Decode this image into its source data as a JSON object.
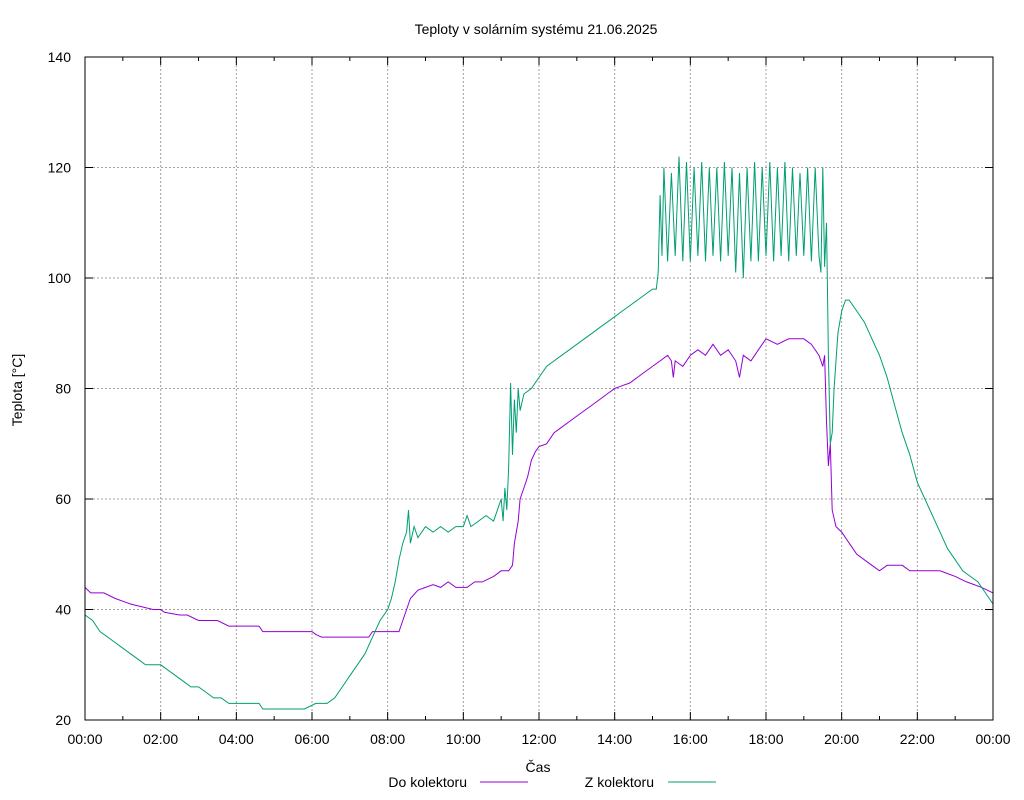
{
  "chart_data": {
    "type": "line",
    "title": "Teploty v solárním systému 21.06.2025",
    "xlabel": "Čas",
    "ylabel": "Teplota [°C]",
    "xlim": [
      0,
      24
    ],
    "ylim": [
      20,
      140
    ],
    "grid": true,
    "legend_position": "bottom",
    "x_ticks": [
      "00:00",
      "02:00",
      "04:00",
      "06:00",
      "08:00",
      "10:00",
      "12:00",
      "14:00",
      "16:00",
      "18:00",
      "20:00",
      "22:00",
      "00:00"
    ],
    "y_ticks": [
      "20",
      "40",
      "60",
      "80",
      "100",
      "120",
      "140"
    ],
    "series": [
      {
        "name": "Do kolektoru",
        "color": "#9400d3",
        "points": [
          [
            0.0,
            44
          ],
          [
            0.15,
            43
          ],
          [
            0.5,
            43
          ],
          [
            0.8,
            42
          ],
          [
            1.2,
            41
          ],
          [
            1.8,
            40
          ],
          [
            2.0,
            40
          ],
          [
            2.1,
            39.5
          ],
          [
            2.5,
            39
          ],
          [
            2.7,
            39
          ],
          [
            3.0,
            38
          ],
          [
            3.5,
            38
          ],
          [
            3.8,
            37
          ],
          [
            4.5,
            37
          ],
          [
            4.6,
            37
          ],
          [
            4.7,
            36
          ],
          [
            5.5,
            36
          ],
          [
            6.0,
            36
          ],
          [
            6.1,
            35.5
          ],
          [
            6.25,
            35
          ],
          [
            7.0,
            35
          ],
          [
            7.5,
            35
          ],
          [
            7.6,
            36
          ],
          [
            8.1,
            36
          ],
          [
            8.3,
            36
          ],
          [
            8.4,
            38
          ],
          [
            8.5,
            40
          ],
          [
            8.6,
            42
          ],
          [
            8.8,
            43.5
          ],
          [
            9.0,
            44
          ],
          [
            9.2,
            44.5
          ],
          [
            9.4,
            44
          ],
          [
            9.6,
            45
          ],
          [
            9.8,
            44
          ],
          [
            10.1,
            44
          ],
          [
            10.3,
            45
          ],
          [
            10.5,
            45
          ],
          [
            10.8,
            46
          ],
          [
            11.0,
            47
          ],
          [
            11.2,
            47
          ],
          [
            11.3,
            48
          ],
          [
            11.35,
            52
          ],
          [
            11.45,
            56
          ],
          [
            11.5,
            60
          ],
          [
            11.6,
            62
          ],
          [
            11.7,
            64
          ],
          [
            11.8,
            67
          ],
          [
            11.9,
            68.5
          ],
          [
            12.0,
            69.5
          ],
          [
            12.2,
            70
          ],
          [
            12.4,
            72
          ],
          [
            12.6,
            73
          ],
          [
            12.8,
            74
          ],
          [
            13.0,
            75
          ],
          [
            13.2,
            76
          ],
          [
            13.4,
            77
          ],
          [
            13.6,
            78
          ],
          [
            13.8,
            79
          ],
          [
            14.0,
            80
          ],
          [
            14.2,
            80.5
          ],
          [
            14.4,
            81
          ],
          [
            14.6,
            82
          ],
          [
            14.8,
            83
          ],
          [
            15.0,
            84
          ],
          [
            15.2,
            85
          ],
          [
            15.4,
            86
          ],
          [
            15.5,
            85
          ],
          [
            15.55,
            82
          ],
          [
            15.6,
            85
          ],
          [
            15.8,
            84
          ],
          [
            16.0,
            86
          ],
          [
            16.2,
            87
          ],
          [
            16.4,
            86
          ],
          [
            16.6,
            88
          ],
          [
            16.8,
            86
          ],
          [
            17.0,
            87
          ],
          [
            17.2,
            85
          ],
          [
            17.3,
            82
          ],
          [
            17.4,
            86
          ],
          [
            17.6,
            85
          ],
          [
            17.8,
            87
          ],
          [
            18.0,
            89
          ],
          [
            18.3,
            88
          ],
          [
            18.6,
            89
          ],
          [
            19.0,
            89
          ],
          [
            19.2,
            88
          ],
          [
            19.4,
            86
          ],
          [
            19.5,
            84
          ],
          [
            19.55,
            86
          ],
          [
            19.6,
            74
          ],
          [
            19.65,
            66
          ],
          [
            19.7,
            70
          ],
          [
            19.75,
            58
          ],
          [
            19.85,
            55
          ],
          [
            20.0,
            54
          ],
          [
            20.2,
            52
          ],
          [
            20.4,
            50
          ],
          [
            20.6,
            49
          ],
          [
            20.8,
            48
          ],
          [
            21.0,
            47
          ],
          [
            21.2,
            48
          ],
          [
            21.6,
            48
          ],
          [
            21.8,
            47
          ],
          [
            22.2,
            47
          ],
          [
            22.6,
            47
          ],
          [
            22.8,
            46.5
          ],
          [
            23.0,
            46
          ],
          [
            23.3,
            45
          ],
          [
            23.5,
            44.5
          ],
          [
            23.7,
            44
          ],
          [
            23.85,
            43.5
          ],
          [
            24.0,
            43
          ]
        ]
      },
      {
        "name": "Z kolektoru",
        "color": "#009e73",
        "points": [
          [
            0.0,
            39
          ],
          [
            0.2,
            38
          ],
          [
            0.4,
            36
          ],
          [
            0.6,
            35
          ],
          [
            0.8,
            34
          ],
          [
            1.0,
            33
          ],
          [
            1.2,
            32
          ],
          [
            1.4,
            31
          ],
          [
            1.6,
            30
          ],
          [
            2.0,
            30
          ],
          [
            2.2,
            29
          ],
          [
            2.4,
            28
          ],
          [
            2.6,
            27
          ],
          [
            2.8,
            26
          ],
          [
            3.0,
            26
          ],
          [
            3.2,
            25
          ],
          [
            3.4,
            24
          ],
          [
            3.6,
            24
          ],
          [
            3.8,
            23
          ],
          [
            4.0,
            23
          ],
          [
            4.6,
            23
          ],
          [
            4.7,
            22
          ],
          [
            5.5,
            22
          ],
          [
            5.8,
            22
          ],
          [
            6.1,
            23
          ],
          [
            6.4,
            23
          ],
          [
            6.6,
            24
          ],
          [
            6.8,
            26
          ],
          [
            7.0,
            28
          ],
          [
            7.2,
            30
          ],
          [
            7.4,
            32
          ],
          [
            7.6,
            35
          ],
          [
            7.8,
            38
          ],
          [
            8.0,
            40
          ],
          [
            8.1,
            42
          ],
          [
            8.2,
            45
          ],
          [
            8.3,
            49
          ],
          [
            8.4,
            52
          ],
          [
            8.5,
            54
          ],
          [
            8.55,
            58
          ],
          [
            8.6,
            52
          ],
          [
            8.7,
            55
          ],
          [
            8.8,
            53
          ],
          [
            9.0,
            55
          ],
          [
            9.2,
            54
          ],
          [
            9.4,
            55
          ],
          [
            9.6,
            54
          ],
          [
            9.8,
            55
          ],
          [
            10.0,
            55
          ],
          [
            10.1,
            57
          ],
          [
            10.2,
            55
          ],
          [
            10.4,
            56
          ],
          [
            10.6,
            57
          ],
          [
            10.8,
            56
          ],
          [
            11.0,
            60
          ],
          [
            11.05,
            56
          ],
          [
            11.1,
            62
          ],
          [
            11.15,
            58
          ],
          [
            11.2,
            66
          ],
          [
            11.25,
            81
          ],
          [
            11.3,
            68
          ],
          [
            11.35,
            78
          ],
          [
            11.4,
            72
          ],
          [
            11.45,
            80
          ],
          [
            11.5,
            76
          ],
          [
            11.6,
            79
          ],
          [
            11.8,
            80
          ],
          [
            12.0,
            82
          ],
          [
            12.2,
            84
          ],
          [
            12.4,
            85
          ],
          [
            12.6,
            86
          ],
          [
            12.8,
            87
          ],
          [
            13.0,
            88
          ],
          [
            13.2,
            89
          ],
          [
            13.4,
            90
          ],
          [
            13.6,
            91
          ],
          [
            13.8,
            92
          ],
          [
            14.0,
            93
          ],
          [
            14.2,
            94
          ],
          [
            14.4,
            95
          ],
          [
            14.6,
            96
          ],
          [
            14.8,
            97
          ],
          [
            15.0,
            98
          ],
          [
            15.1,
            98
          ],
          [
            15.15,
            101
          ],
          [
            15.2,
            115
          ],
          [
            15.25,
            104
          ],
          [
            15.3,
            120
          ],
          [
            15.4,
            103
          ],
          [
            15.5,
            119
          ],
          [
            15.6,
            104
          ],
          [
            15.7,
            122
          ],
          [
            15.8,
            103
          ],
          [
            15.9,
            121
          ],
          [
            16.0,
            103
          ],
          [
            16.1,
            120
          ],
          [
            16.2,
            104
          ],
          [
            16.3,
            121
          ],
          [
            16.4,
            103
          ],
          [
            16.5,
            120
          ],
          [
            16.6,
            104
          ],
          [
            16.7,
            120
          ],
          [
            16.8,
            103
          ],
          [
            16.9,
            121
          ],
          [
            17.0,
            104
          ],
          [
            17.1,
            120
          ],
          [
            17.2,
            101
          ],
          [
            17.3,
            119
          ],
          [
            17.4,
            100
          ],
          [
            17.5,
            120
          ],
          [
            17.6,
            103
          ],
          [
            17.7,
            121
          ],
          [
            17.8,
            103
          ],
          [
            17.9,
            120
          ],
          [
            18.0,
            104
          ],
          [
            18.1,
            121
          ],
          [
            18.2,
            103
          ],
          [
            18.3,
            120
          ],
          [
            18.4,
            104
          ],
          [
            18.5,
            121
          ],
          [
            18.6,
            103
          ],
          [
            18.7,
            120
          ],
          [
            18.8,
            104
          ],
          [
            18.9,
            119
          ],
          [
            19.0,
            104
          ],
          [
            19.1,
            120
          ],
          [
            19.2,
            103
          ],
          [
            19.3,
            120
          ],
          [
            19.4,
            104
          ],
          [
            19.45,
            101
          ],
          [
            19.5,
            120
          ],
          [
            19.55,
            102
          ],
          [
            19.6,
            110
          ],
          [
            19.62,
            100
          ],
          [
            19.65,
            86
          ],
          [
            19.7,
            70
          ],
          [
            19.75,
            72
          ],
          [
            19.8,
            80
          ],
          [
            19.85,
            85
          ],
          [
            19.9,
            90
          ],
          [
            20.0,
            94
          ],
          [
            20.1,
            96
          ],
          [
            20.2,
            96
          ],
          [
            20.4,
            94
          ],
          [
            20.6,
            92
          ],
          [
            20.8,
            89
          ],
          [
            21.0,
            86
          ],
          [
            21.2,
            82
          ],
          [
            21.4,
            77
          ],
          [
            21.6,
            72
          ],
          [
            21.8,
            68
          ],
          [
            22.0,
            63
          ],
          [
            22.2,
            60
          ],
          [
            22.4,
            57
          ],
          [
            22.6,
            54
          ],
          [
            22.8,
            51
          ],
          [
            23.0,
            49
          ],
          [
            23.2,
            47
          ],
          [
            23.4,
            46
          ],
          [
            23.6,
            45
          ],
          [
            23.8,
            43
          ],
          [
            24.0,
            41
          ]
        ]
      }
    ]
  }
}
